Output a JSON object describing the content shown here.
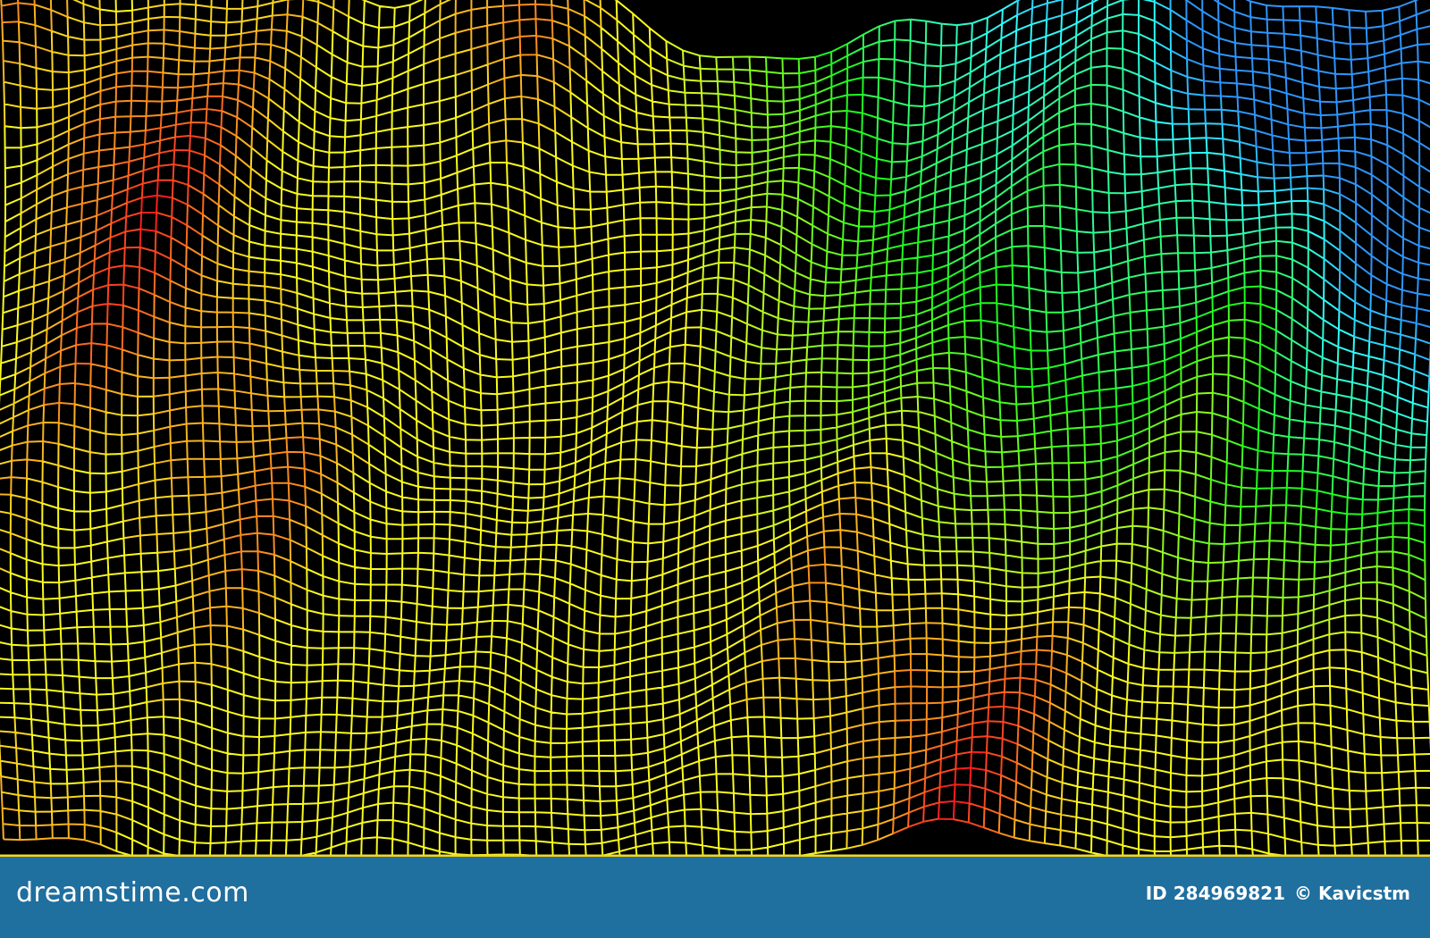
{
  "footer": {
    "logo": "dreamstime.com",
    "id": "ID 284969821",
    "author": "© Kavicstm"
  }
}
